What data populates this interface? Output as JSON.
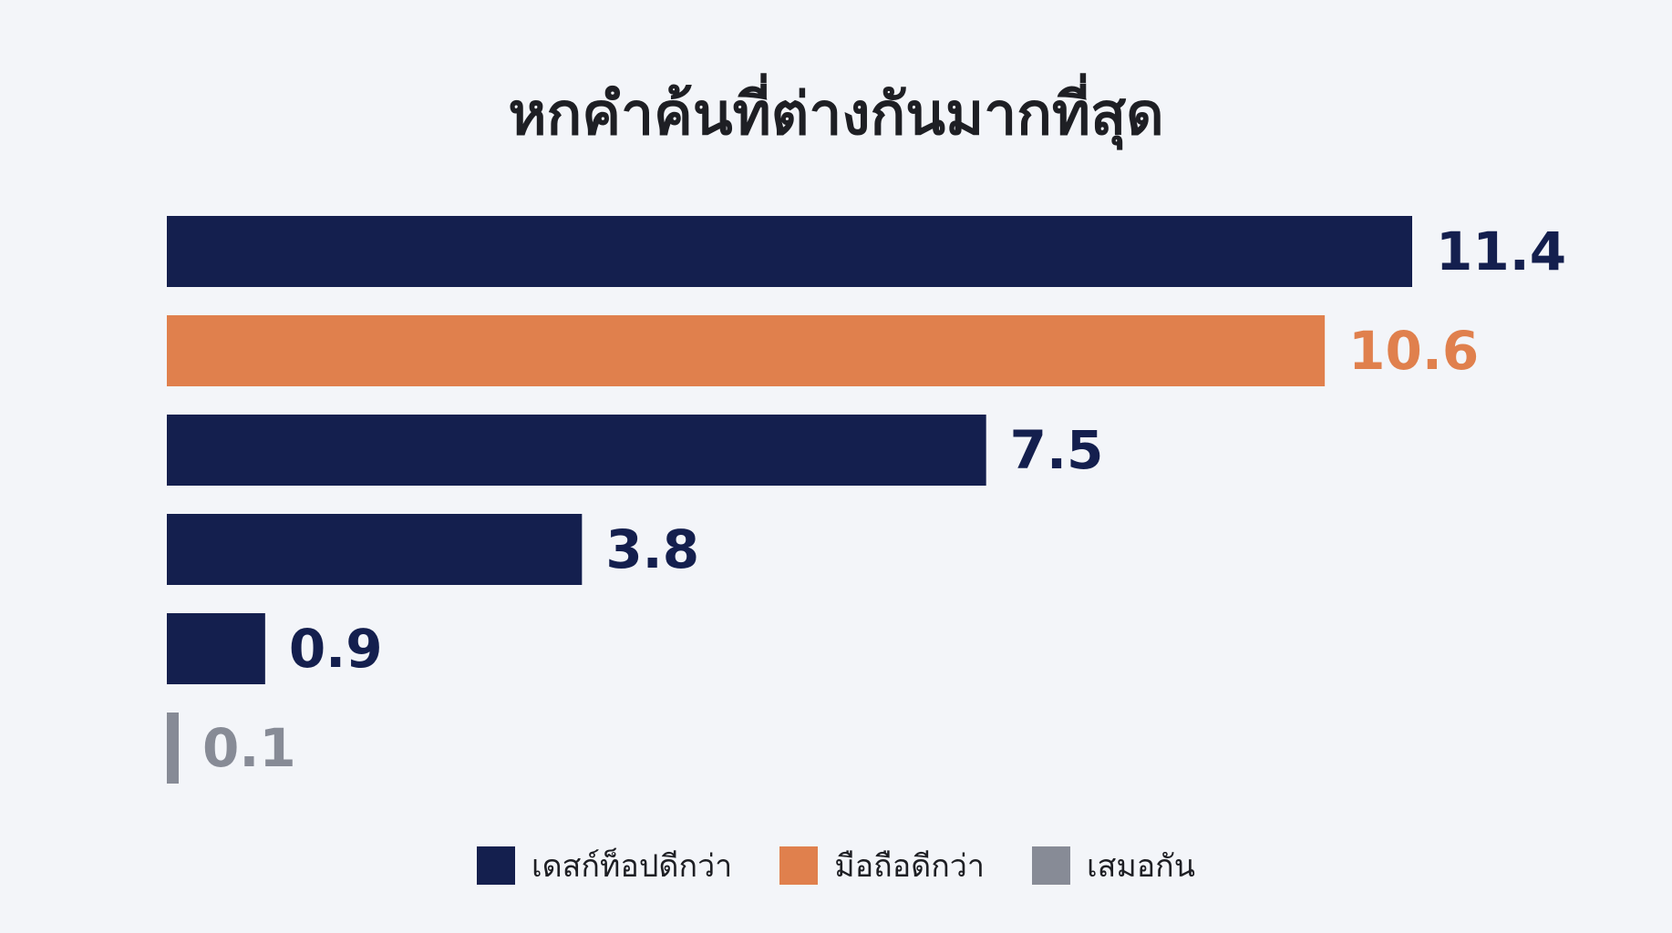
{
  "chart_data": {
    "type": "bar",
    "orientation": "horizontal",
    "title": "หกคำค้นที่ต่างกันมากที่สุด",
    "values": [
      11.4,
      10.6,
      7.5,
      3.8,
      0.9,
      0.1
    ],
    "value_labels": [
      "11.4",
      "10.6",
      "7.5",
      "3.8",
      "0.9",
      "0.1"
    ],
    "bar_series": [
      0,
      1,
      0,
      0,
      0,
      2
    ],
    "xlim": [
      0,
      11.4
    ],
    "grid": false,
    "legend_position": "bottom-center",
    "series": [
      {
        "name": "เดสก์ท็อปดีกว่า",
        "color": "#141f4e"
      },
      {
        "name": "มือถือดีกว่า",
        "color": "#e0804d"
      },
      {
        "name": "เสมอกัน",
        "color": "#878b96"
      }
    ]
  }
}
